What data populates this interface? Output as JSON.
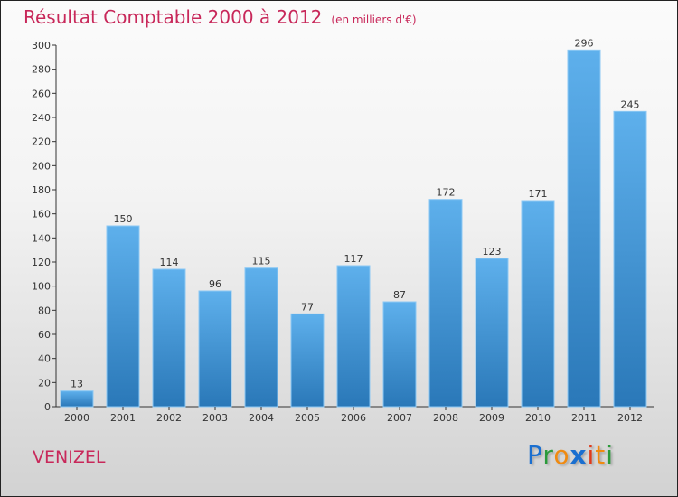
{
  "title": "Résultat Comptable 2000 à 2012",
  "subtitle": "(en milliers d'€)",
  "city": "VENIZEL",
  "logo": "Proxiti",
  "colors": {
    "bar": "#3d8fd6",
    "title": "#c8285a"
  },
  "chart_data": {
    "type": "bar",
    "title": "Résultat Comptable 2000 à 2012",
    "ylabel": "en milliers d'€",
    "categories": [
      "2000",
      "2001",
      "2002",
      "2003",
      "2004",
      "2005",
      "2006",
      "2007",
      "2008",
      "2009",
      "2010",
      "2011",
      "2012"
    ],
    "values": [
      13,
      150,
      114,
      96,
      115,
      77,
      117,
      87,
      172,
      123,
      171,
      296,
      245
    ],
    "ylim": [
      0,
      300
    ],
    "yticks": [
      0,
      20,
      40,
      60,
      80,
      100,
      120,
      140,
      160,
      180,
      200,
      220,
      240,
      260,
      280,
      300
    ]
  }
}
